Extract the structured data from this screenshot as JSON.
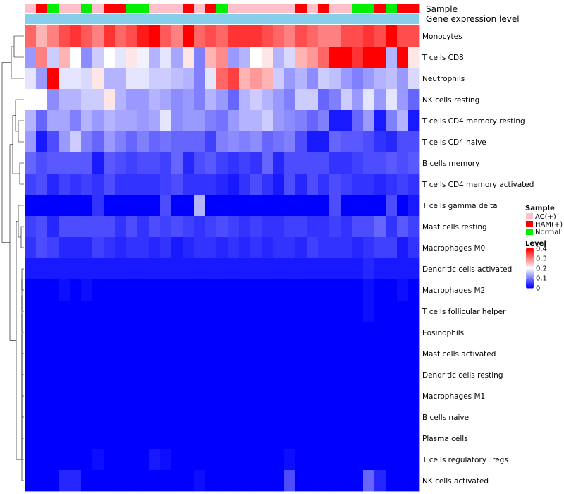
{
  "chart_data": {
    "type": "heatmap",
    "title": "",
    "annotation_rows": [
      "Sample",
      "Gene expression level"
    ],
    "sample_groups": [
      "AC(+)",
      "HAM(+)",
      "Normal",
      "AC(+)",
      "AC(+)",
      "Normal",
      "AC(+)",
      "HAM(+)",
      "HAM(+)",
      "Normal",
      "Normal",
      "AC(+)",
      "AC(+)",
      "AC(+)",
      "HAM(+)",
      "AC(+)",
      "HAM(+)",
      "Normal",
      "AC(+)",
      "AC(+)",
      "AC(+)",
      "AC(+)",
      "AC(+)",
      "AC(+)",
      "HAM(+)",
      "AC(+)",
      "HAM(+)",
      "AC(+)",
      "AC(+)",
      "Normal",
      "Normal",
      "HAM(+)",
      "Normal",
      "HAM(+)",
      "HAM(+)"
    ],
    "rows": [
      "Monocytes",
      "T cells CD8",
      "Neutrophils",
      "NK cells resting",
      "T cells CD4 memory resting",
      "T cells CD4 naive",
      "B cells memory",
      "T cells CD4 memory activated",
      "T cells gamma delta",
      "Mast cells resting",
      "Macrophages M0",
      "Dendritic cells activated",
      "Macrophages M2",
      "T cells follicular helper",
      "Eosinophils",
      "Mast cells activated",
      "Dendritic cells resting",
      "Macrophages M1",
      "B cells naive",
      "Plasma cells",
      "T cells regulatory  Tregs",
      "NK cells activated"
    ],
    "values": [
      [
        0.32,
        0.26,
        0.3,
        0.34,
        0.36,
        0.33,
        0.3,
        0.36,
        0.32,
        0.34,
        0.38,
        0.4,
        0.33,
        0.3,
        0.4,
        0.32,
        0.34,
        0.32,
        0.36,
        0.36,
        0.36,
        0.34,
        0.32,
        0.3,
        0.34,
        0.32,
        0.3,
        0.3,
        0.34,
        0.34,
        0.36,
        0.34,
        0.4,
        0.34,
        0.34
      ],
      [
        0.12,
        0.3,
        0.16,
        0.26,
        0.2,
        0.11,
        0.16,
        0.2,
        0.18,
        0.22,
        0.19,
        0.14,
        0.18,
        0.13,
        0.22,
        0.1,
        0.26,
        0.29,
        0.12,
        0.14,
        0.2,
        0.22,
        0.14,
        0.17,
        0.26,
        0.28,
        0.32,
        0.4,
        0.4,
        0.36,
        0.4,
        0.4,
        0.14,
        0.4,
        0.22
      ],
      [
        0.18,
        0.12,
        0.4,
        0.18,
        0.18,
        0.17,
        0.22,
        0.14,
        0.14,
        0.18,
        0.18,
        0.16,
        0.16,
        0.15,
        0.14,
        0.1,
        0.18,
        0.32,
        0.35,
        0.26,
        0.28,
        0.26,
        0.16,
        0.12,
        0.14,
        0.11,
        0.16,
        0.15,
        0.12,
        0.1,
        0.12,
        0.14,
        0.15,
        0.12,
        0.17
      ],
      [
        0.2,
        0.2,
        0.11,
        0.14,
        0.14,
        0.16,
        0.16,
        0.22,
        0.14,
        0.12,
        0.12,
        0.14,
        0.13,
        0.11,
        0.12,
        0.1,
        0.14,
        0.12,
        0.08,
        0.14,
        0.16,
        0.14,
        0.12,
        0.1,
        0.16,
        0.16,
        0.08,
        0.1,
        0.16,
        0.12,
        0.18,
        0.12,
        0.18,
        0.12,
        0.08
      ],
      [
        0.14,
        0.08,
        0.13,
        0.13,
        0.1,
        0.14,
        0.12,
        0.14,
        0.13,
        0.13,
        0.12,
        0.13,
        0.18,
        0.11,
        0.12,
        0.12,
        0.1,
        0.09,
        0.12,
        0.14,
        0.14,
        0.16,
        0.12,
        0.11,
        0.1,
        0.08,
        0.1,
        0.02,
        0.02,
        0.08,
        0.12,
        0.02,
        0.1,
        0.14,
        0.02
      ],
      [
        0.12,
        0.02,
        0.06,
        0.12,
        0.16,
        0.1,
        0.08,
        0.12,
        0.1,
        0.08,
        0.1,
        0.08,
        0.09,
        0.08,
        0.08,
        0.08,
        0.05,
        0.1,
        0.11,
        0.1,
        0.11,
        0.08,
        0.09,
        0.1,
        0.06,
        0.02,
        0.02,
        0.08,
        0.07,
        0.07,
        0.06,
        0.04,
        0.03,
        0.06,
        0.06
      ],
      [
        0.08,
        0.06,
        0.07,
        0.07,
        0.07,
        0.07,
        0.02,
        0.07,
        0.06,
        0.05,
        0.06,
        0.06,
        0.05,
        0.08,
        0.03,
        0.06,
        0.07,
        0.05,
        0.04,
        0.05,
        0.04,
        0.08,
        0.03,
        0.06,
        0.06,
        0.06,
        0.06,
        0.04,
        0.04,
        0.05,
        0.06,
        0.06,
        0.07,
        0.06,
        0.07
      ],
      [
        0.05,
        0.06,
        0.03,
        0.05,
        0.04,
        0.05,
        0.04,
        0.06,
        0.04,
        0.04,
        0.04,
        0.04,
        0.05,
        0.06,
        0.04,
        0.04,
        0.04,
        0.03,
        0.02,
        0.04,
        0.06,
        0.04,
        0.02,
        0.06,
        0.03,
        0.06,
        0.04,
        0.06,
        0.05,
        0.04,
        0.04,
        0.03,
        0.04,
        0.05,
        0.04
      ],
      [
        0.0,
        0.0,
        0.0,
        0.0,
        0.0,
        0.0,
        0.04,
        0.0,
        0.0,
        0.0,
        0.0,
        0.0,
        0.06,
        0.0,
        0.0,
        0.14,
        0.0,
        0.0,
        0.0,
        0.0,
        0.0,
        0.0,
        0.0,
        0.0,
        0.0,
        0.0,
        0.0,
        0.06,
        0.0,
        0.0,
        0.0,
        0.0,
        0.06,
        0.0,
        0.02
      ],
      [
        0.05,
        0.06,
        0.03,
        0.06,
        0.06,
        0.06,
        0.06,
        0.06,
        0.04,
        0.06,
        0.04,
        0.06,
        0.05,
        0.06,
        0.05,
        0.04,
        0.05,
        0.06,
        0.05,
        0.04,
        0.05,
        0.04,
        0.04,
        0.05,
        0.05,
        0.04,
        0.04,
        0.05,
        0.04,
        0.06,
        0.06,
        0.08,
        0.04,
        0.07,
        0.05
      ],
      [
        0.04,
        0.06,
        0.05,
        0.03,
        0.03,
        0.03,
        0.05,
        0.04,
        0.03,
        0.04,
        0.04,
        0.03,
        0.04,
        0.02,
        0.03,
        0.04,
        0.04,
        0.03,
        0.04,
        0.03,
        0.04,
        0.03,
        0.04,
        0.04,
        0.03,
        0.05,
        0.04,
        0.04,
        0.04,
        0.03,
        0.04,
        0.05,
        0.05,
        0.02,
        0.04
      ],
      [
        0.02,
        0.02,
        0.02,
        0.02,
        0.02,
        0.02,
        0.02,
        0.02,
        0.02,
        0.02,
        0.02,
        0.02,
        0.02,
        0.02,
        0.02,
        0.02,
        0.02,
        0.02,
        0.02,
        0.02,
        0.02,
        0.02,
        0.02,
        0.02,
        0.02,
        0.02,
        0.02,
        0.02,
        0.02,
        0.02,
        0.03,
        0.02,
        0.02,
        0.02,
        0.02
      ],
      [
        0.0,
        0.0,
        0.0,
        0.01,
        0.0,
        0.01,
        0.0,
        0.0,
        0.0,
        0.0,
        0.0,
        0.0,
        0.0,
        0.0,
        0.0,
        0.0,
        0.0,
        0.0,
        0.0,
        0.0,
        0.0,
        0.0,
        0.0,
        0.0,
        0.0,
        0.0,
        0.0,
        0.0,
        0.0,
        0.0,
        0.01,
        0.0,
        0.0,
        0.01,
        0.0
      ],
      [
        0.0,
        0.0,
        0.0,
        0.0,
        0.0,
        0.0,
        0.0,
        0.0,
        0.0,
        0.0,
        0.0,
        0.0,
        0.0,
        0.0,
        0.0,
        0.0,
        0.0,
        0.0,
        0.0,
        0.0,
        0.0,
        0.0,
        0.0,
        0.0,
        0.0,
        0.0,
        0.0,
        0.0,
        0.0,
        0.0,
        0.01,
        0.0,
        0.0,
        0.0,
        0.0
      ],
      [
        0.0,
        0.0,
        0.0,
        0.0,
        0.0,
        0.0,
        0.0,
        0.0,
        0.0,
        0.0,
        0.0,
        0.0,
        0.0,
        0.0,
        0.0,
        0.0,
        0.0,
        0.0,
        0.0,
        0.0,
        0.0,
        0.0,
        0.0,
        0.0,
        0.0,
        0.0,
        0.0,
        0.0,
        0.0,
        0.0,
        0.0,
        0.0,
        0.0,
        0.0,
        0.0
      ],
      [
        0.0,
        0.0,
        0.0,
        0.0,
        0.0,
        0.0,
        0.0,
        0.0,
        0.0,
        0.0,
        0.0,
        0.0,
        0.0,
        0.0,
        0.0,
        0.0,
        0.0,
        0.0,
        0.0,
        0.0,
        0.0,
        0.0,
        0.0,
        0.0,
        0.0,
        0.0,
        0.0,
        0.0,
        0.0,
        0.0,
        0.0,
        0.0,
        0.0,
        0.0,
        0.0
      ],
      [
        0.0,
        0.0,
        0.0,
        0.0,
        0.0,
        0.0,
        0.0,
        0.0,
        0.0,
        0.0,
        0.0,
        0.0,
        0.0,
        0.0,
        0.0,
        0.0,
        0.0,
        0.0,
        0.0,
        0.0,
        0.0,
        0.0,
        0.0,
        0.0,
        0.0,
        0.0,
        0.0,
        0.0,
        0.0,
        0.0,
        0.0,
        0.0,
        0.0,
        0.0,
        0.0
      ],
      [
        0.0,
        0.0,
        0.0,
        0.0,
        0.0,
        0.0,
        0.0,
        0.0,
        0.0,
        0.0,
        0.0,
        0.0,
        0.0,
        0.0,
        0.0,
        0.0,
        0.0,
        0.0,
        0.0,
        0.0,
        0.0,
        0.0,
        0.0,
        0.0,
        0.0,
        0.0,
        0.0,
        0.0,
        0.0,
        0.0,
        0.0,
        0.0,
        0.0,
        0.0,
        0.0
      ],
      [
        0.0,
        0.0,
        0.0,
        0.0,
        0.0,
        0.0,
        0.0,
        0.0,
        0.0,
        0.0,
        0.0,
        0.0,
        0.0,
        0.0,
        0.0,
        0.0,
        0.0,
        0.0,
        0.0,
        0.0,
        0.0,
        0.0,
        0.0,
        0.0,
        0.0,
        0.0,
        0.0,
        0.0,
        0.0,
        0.0,
        0.0,
        0.0,
        0.0,
        0.0,
        0.0
      ],
      [
        0.0,
        0.0,
        0.0,
        0.0,
        0.0,
        0.0,
        0.0,
        0.0,
        0.0,
        0.0,
        0.0,
        0.0,
        0.0,
        0.0,
        0.0,
        0.0,
        0.0,
        0.0,
        0.0,
        0.0,
        0.0,
        0.0,
        0.0,
        0.0,
        0.0,
        0.0,
        0.0,
        0.0,
        0.0,
        0.0,
        0.0,
        0.0,
        0.0,
        0.0,
        0.0
      ],
      [
        0.0,
        0.0,
        0.0,
        0.0,
        0.0,
        0.0,
        0.01,
        0.0,
        0.0,
        0.0,
        0.0,
        0.02,
        0.01,
        0.0,
        0.0,
        0.0,
        0.0,
        0.0,
        0.0,
        0.0,
        0.0,
        0.0,
        0.0,
        0.01,
        0.0,
        0.0,
        0.0,
        0.0,
        0.0,
        0.0,
        0.0,
        0.0,
        0.0,
        0.0,
        0.0
      ],
      [
        0.0,
        0.0,
        0.0,
        0.03,
        0.03,
        0.0,
        0.0,
        0.0,
        0.0,
        0.0,
        0.0,
        0.0,
        0.0,
        0.0,
        0.0,
        0.01,
        0.0,
        0.0,
        0.0,
        0.0,
        0.0,
        0.0,
        0.0,
        0.06,
        0.0,
        0.0,
        0.0,
        0.0,
        0.0,
        0.0,
        0.08,
        0.03,
        0.0,
        0.0,
        0.0
      ]
    ],
    "legend": {
      "sample": {
        "title": "Sample",
        "entries": [
          {
            "label": "AC(+)",
            "color": "#FFC0CB"
          },
          {
            "label": "HAM(+)",
            "color": "#FF0000"
          },
          {
            "label": "Normal",
            "color": "#00EE00"
          }
        ]
      },
      "level": {
        "title": "Level",
        "ticks": [
          "0.4",
          "0.3",
          "0.2",
          "0.1",
          "0"
        ],
        "range": [
          0,
          0.4
        ]
      }
    },
    "expression_color": "#87CEEB",
    "color_scale": {
      "low": "#0000FF",
      "mid": "#FFFFFF",
      "high": "#FF0000",
      "midpoint": 0.2
    }
  }
}
